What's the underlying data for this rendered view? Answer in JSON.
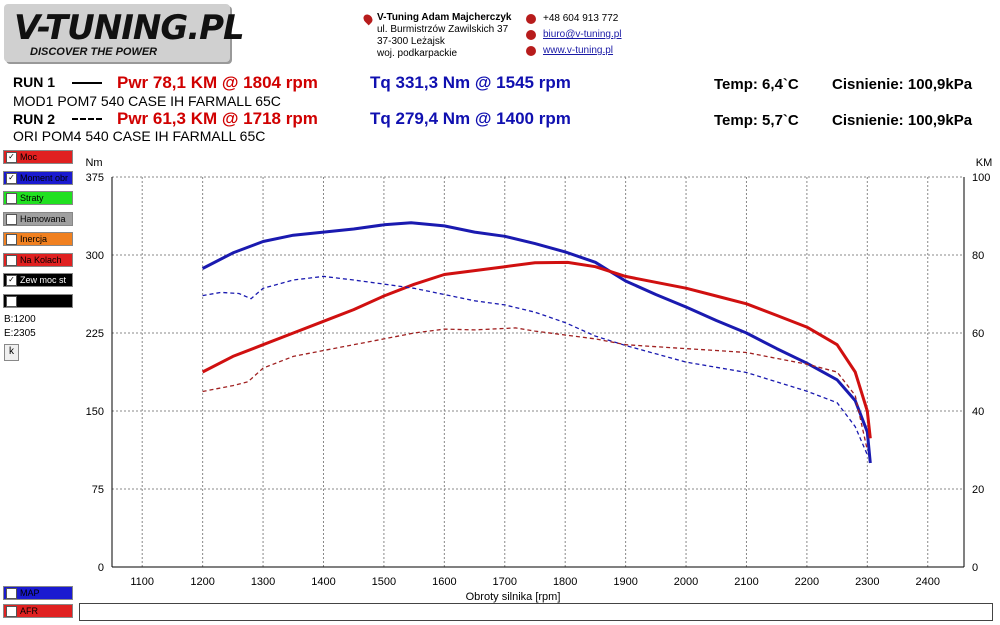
{
  "logo": {
    "main": "V-TUNING.PL",
    "tagline": "DISCOVER THE POWER"
  },
  "contact": {
    "company": "V-Tuning Adam Majcherczyk",
    "street": "ul. Burmistrzów Zawilskich 37",
    "city": "37-300 Leżajsk",
    "region": "woj. podkarpackie",
    "phone": "+48 604 913 772",
    "email": "biuro@v-tuning.pl",
    "web": "www.v-tuning.pl"
  },
  "runs": [
    {
      "label": "RUN 1",
      "pwr": "Pwr  78,1 KM @ 1804 rpm",
      "tq": "Tq 331,3 Nm @ 1545 rpm",
      "temp": "Temp: 6,4`C",
      "pressure": "Cisnienie: 100,9kPa",
      "desc": "MOD1 POM7 540 CASE IH FARMALL 65C"
    },
    {
      "label": "RUN 2",
      "pwr": "Pwr  61,3 KM @ 1718 rpm",
      "tq": "Tq 279,4 Nm @ 1400 rpm",
      "temp": "Temp: 5,7`C",
      "pressure": "Cisnienie: 100,9kPa",
      "desc": "ORI POM4 540 CASE IH FARMALL 65C"
    }
  ],
  "toggles": [
    {
      "label": "Moc",
      "checked": true,
      "color": "#e02020"
    },
    {
      "label": "Moment obr",
      "checked": true,
      "color": "#1a1ad0"
    },
    {
      "label": "Straty",
      "checked": false,
      "color": "#20e020"
    },
    {
      "label": "Hamowana",
      "checked": false,
      "color": "#a0a0a0"
    },
    {
      "label": "Inercja",
      "checked": false,
      "color": "#f08020"
    },
    {
      "label": "Na Kolach",
      "checked": false,
      "color": "#e02020"
    },
    {
      "label": "Zew moc st",
      "checked": true,
      "color": "#000000"
    },
    {
      "label": "",
      "checked": false,
      "color": "#000000"
    }
  ],
  "bottom_toggles": [
    {
      "label": "MAP",
      "checked": false,
      "color": "#1a1ad0"
    },
    {
      "label": "AFR",
      "checked": false,
      "color": "#e02020"
    }
  ],
  "side": {
    "begin": "B:1200",
    "end": "E:2305",
    "k_button": "k"
  },
  "chart_data": {
    "type": "line",
    "xlabel": "Obroty silnika [rpm]",
    "ylabel_left": "Nm",
    "ylabel_right": "KM",
    "xlim": [
      1050,
      2460
    ],
    "ylim_left": [
      0,
      375
    ],
    "ylim_right": [
      0,
      100
    ],
    "xticks": [
      1100,
      1200,
      1300,
      1400,
      1500,
      1600,
      1700,
      1800,
      1900,
      2000,
      2100,
      2200,
      2300,
      2400
    ],
    "yticks_left": [
      0,
      75,
      150,
      225,
      300,
      375
    ],
    "yticks_right": [
      0,
      20,
      40,
      60,
      80,
      100
    ],
    "grid": true,
    "series": [
      {
        "name": "RUN 1 Tq",
        "axis": "left",
        "color": "#1a1ab0",
        "style": "solid",
        "x": [
          1200,
          1250,
          1300,
          1350,
          1400,
          1450,
          1500,
          1545,
          1600,
          1650,
          1700,
          1750,
          1800,
          1850,
          1900,
          1950,
          2000,
          2050,
          2100,
          2150,
          2200,
          2250,
          2280,
          2300,
          2305
        ],
        "y": [
          287,
          302,
          313,
          319,
          322,
          325,
          329,
          331,
          328,
          322,
          318,
          311,
          303,
          293,
          275,
          262,
          250,
          237,
          225,
          210,
          196,
          180,
          160,
          130,
          100
        ]
      },
      {
        "name": "RUN 1 Pwr",
        "axis": "right",
        "color": "#d01010",
        "style": "solid",
        "x": [
          1200,
          1250,
          1300,
          1350,
          1400,
          1450,
          1500,
          1550,
          1600,
          1650,
          1700,
          1750,
          1804,
          1850,
          1900,
          1950,
          2000,
          2050,
          2100,
          2150,
          2200,
          2250,
          2280,
          2300,
          2305
        ],
        "y": [
          50,
          54,
          57,
          60,
          63,
          66,
          69.5,
          72.5,
          75,
          76,
          77,
          78,
          78.1,
          77,
          74.5,
          73,
          71.5,
          69.5,
          67.5,
          64.5,
          61.5,
          57,
          50,
          40,
          33
        ]
      },
      {
        "name": "RUN 2 Tq",
        "axis": "left",
        "color": "#1a1ab0",
        "style": "dashed",
        "x": [
          1200,
          1230,
          1260,
          1280,
          1300,
          1350,
          1400,
          1450,
          1500,
          1550,
          1600,
          1650,
          1700,
          1750,
          1800,
          1850,
          1900,
          1950,
          2000,
          2050,
          2100,
          2150,
          2200,
          2250,
          2280,
          2300
        ],
        "y": [
          261,
          264,
          263,
          258,
          268,
          276,
          279.4,
          276,
          272,
          268,
          262,
          256,
          252,
          245,
          235,
          222,
          213,
          205,
          197,
          192,
          187,
          178,
          169,
          158,
          135,
          108
        ]
      },
      {
        "name": "RUN 2 Pwr",
        "axis": "right",
        "color": "#a02020",
        "style": "dashed",
        "x": [
          1200,
          1250,
          1275,
          1300,
          1350,
          1400,
          1450,
          1500,
          1550,
          1600,
          1650,
          1718,
          1750,
          1800,
          1850,
          1900,
          1950,
          2000,
          2050,
          2100,
          2150,
          2200,
          2250,
          2280,
          2300
        ],
        "y": [
          45,
          46.5,
          47.5,
          51,
          54,
          55.5,
          57,
          58.5,
          60,
          61,
          60.8,
          61.3,
          60.5,
          59.5,
          58.5,
          57,
          56.5,
          56,
          55.5,
          55,
          53.5,
          52,
          50,
          44,
          30
        ]
      }
    ]
  }
}
